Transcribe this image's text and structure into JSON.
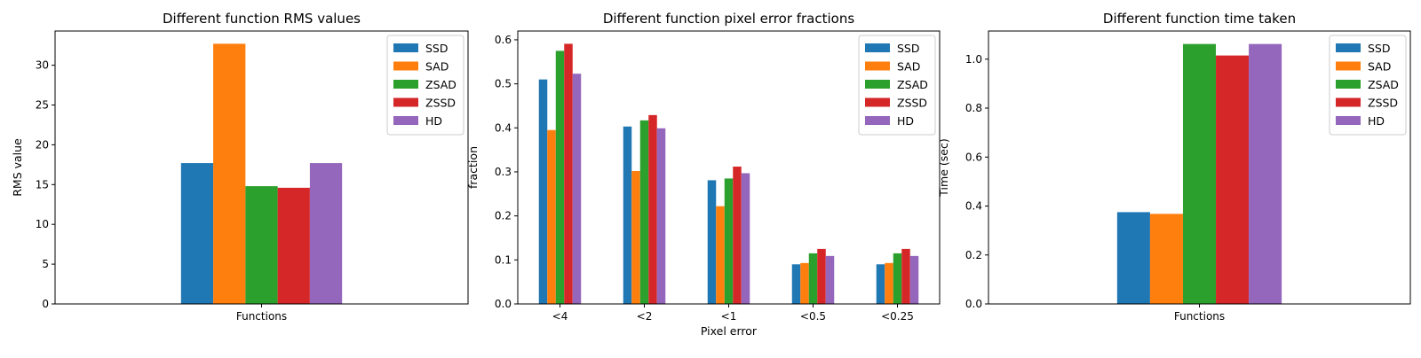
{
  "chart_data": [
    {
      "type": "bar",
      "title": "Different function RMS values",
      "xlabel": "",
      "ylabel": "RMS value",
      "categories": [
        "Functions"
      ],
      "series": [
        {
          "name": "SSD",
          "values": [
            17.7
          ]
        },
        {
          "name": "SAD",
          "values": [
            32.7
          ]
        },
        {
          "name": "ZSAD",
          "values": [
            14.8
          ]
        },
        {
          "name": "ZSSD",
          "values": [
            14.6
          ]
        },
        {
          "name": "HD",
          "values": [
            17.7
          ]
        }
      ],
      "ylim": [
        0,
        34.3
      ],
      "yticks": [
        0,
        5,
        10,
        15,
        20,
        25,
        30
      ],
      "ytick_labels": [
        "0",
        "5",
        "10",
        "15",
        "20",
        "25",
        "30"
      ],
      "legend": "top-right",
      "grid": false
    },
    {
      "type": "bar",
      "title": "Different function pixel error fractions",
      "xlabel": "Pixel error",
      "ylabel": "fraction",
      "categories": [
        "<4",
        "<2",
        "<1",
        "<0.5",
        "<0.25"
      ],
      "series": [
        {
          "name": "SSD",
          "values": [
            0.51,
            0.403,
            0.281,
            0.09,
            0.09
          ]
        },
        {
          "name": "SAD",
          "values": [
            0.395,
            0.302,
            0.222,
            0.093,
            0.093
          ]
        },
        {
          "name": "ZSAD",
          "values": [
            0.575,
            0.417,
            0.285,
            0.115,
            0.115
          ]
        },
        {
          "name": "ZSSD",
          "values": [
            0.591,
            0.429,
            0.312,
            0.125,
            0.125
          ]
        },
        {
          "name": "HD",
          "values": [
            0.523,
            0.399,
            0.297,
            0.109,
            0.109
          ]
        }
      ],
      "ylim": [
        0,
        0.62
      ],
      "yticks": [
        0,
        0.1,
        0.2,
        0.3,
        0.4,
        0.5,
        0.6
      ],
      "ytick_labels": [
        "0.0",
        "0.1",
        "0.2",
        "0.3",
        "0.4",
        "0.5",
        "0.6"
      ],
      "legend": "top-right",
      "grid": false
    },
    {
      "type": "bar",
      "title": "Different function time taken",
      "xlabel": "",
      "ylabel": "Time (sec)",
      "categories": [
        "Functions"
      ],
      "series": [
        {
          "name": "SSD",
          "values": [
            0.375
          ]
        },
        {
          "name": "SAD",
          "values": [
            0.368
          ]
        },
        {
          "name": "ZSAD",
          "values": [
            1.062
          ]
        },
        {
          "name": "ZSSD",
          "values": [
            1.015
          ]
        },
        {
          "name": "HD",
          "values": [
            1.062
          ]
        }
      ],
      "ylim": [
        0,
        1.115
      ],
      "yticks": [
        0,
        0.2,
        0.4,
        0.6,
        0.8,
        1.0
      ],
      "ytick_labels": [
        "0.0",
        "0.2",
        "0.4",
        "0.6",
        "0.8",
        "1.0"
      ],
      "legend": "top-right",
      "grid": false
    }
  ],
  "colors": {
    "SSD": "#1f77b4",
    "SAD": "#ff7f0e",
    "ZSAD": "#2ca02c",
    "ZSSD": "#d62728",
    "HD": "#9467bd"
  }
}
